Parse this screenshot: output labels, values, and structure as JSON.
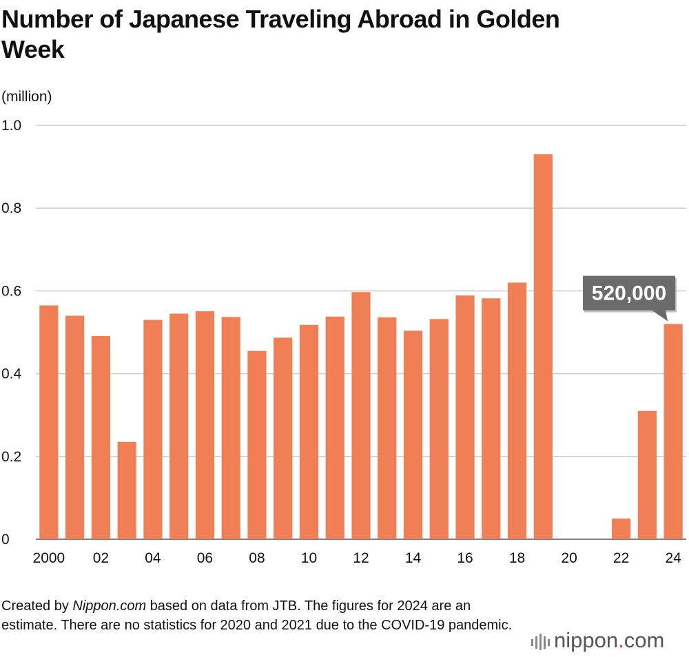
{
  "title": "Number of Japanese Traveling Abroad in Golden Week",
  "footnote": {
    "prefix": "Created by ",
    "source": "Nippon.com",
    "suffix": " based on data from JTB. The figures for 2024 are an estimate. There are no statistics for 2020 and 2021 due to the COVID-19 pandemic."
  },
  "logo": {
    "name": "nippon",
    "dot": ".",
    "domain": "com"
  },
  "chart_data": {
    "type": "bar",
    "ylabel": "(million)",
    "ylim": [
      0,
      1.0
    ],
    "yticks": [
      "0",
      "0.2",
      "0.4",
      "0.6",
      "0.8",
      "1.0"
    ],
    "ytick_values": [
      0,
      0.2,
      0.4,
      0.6,
      0.8,
      1.0
    ],
    "grid": true,
    "bar_color": "#f17f55",
    "categories": [
      "2000",
      "2001",
      "2002",
      "2003",
      "2004",
      "2005",
      "2006",
      "2007",
      "2008",
      "2009",
      "2010",
      "2011",
      "2012",
      "2013",
      "2014",
      "2015",
      "2016",
      "2017",
      "2018",
      "2019",
      "2020",
      "2021",
      "2022",
      "2023",
      "2024"
    ],
    "tick_labels": [
      "2000",
      "",
      "02",
      "",
      "04",
      "",
      "06",
      "",
      "08",
      "",
      "10",
      "",
      "12",
      "",
      "14",
      "",
      "16",
      "",
      "18",
      "",
      "20",
      "",
      "22",
      "",
      "24"
    ],
    "values": [
      0.565,
      0.54,
      0.491,
      0.235,
      0.53,
      0.545,
      0.551,
      0.537,
      0.455,
      0.487,
      0.518,
      0.538,
      0.597,
      0.536,
      0.504,
      0.532,
      0.589,
      0.582,
      0.62,
      0.93,
      null,
      null,
      0.05,
      0.31,
      0.52
    ],
    "annotation": {
      "category": "2024",
      "text": "520,000"
    }
  }
}
